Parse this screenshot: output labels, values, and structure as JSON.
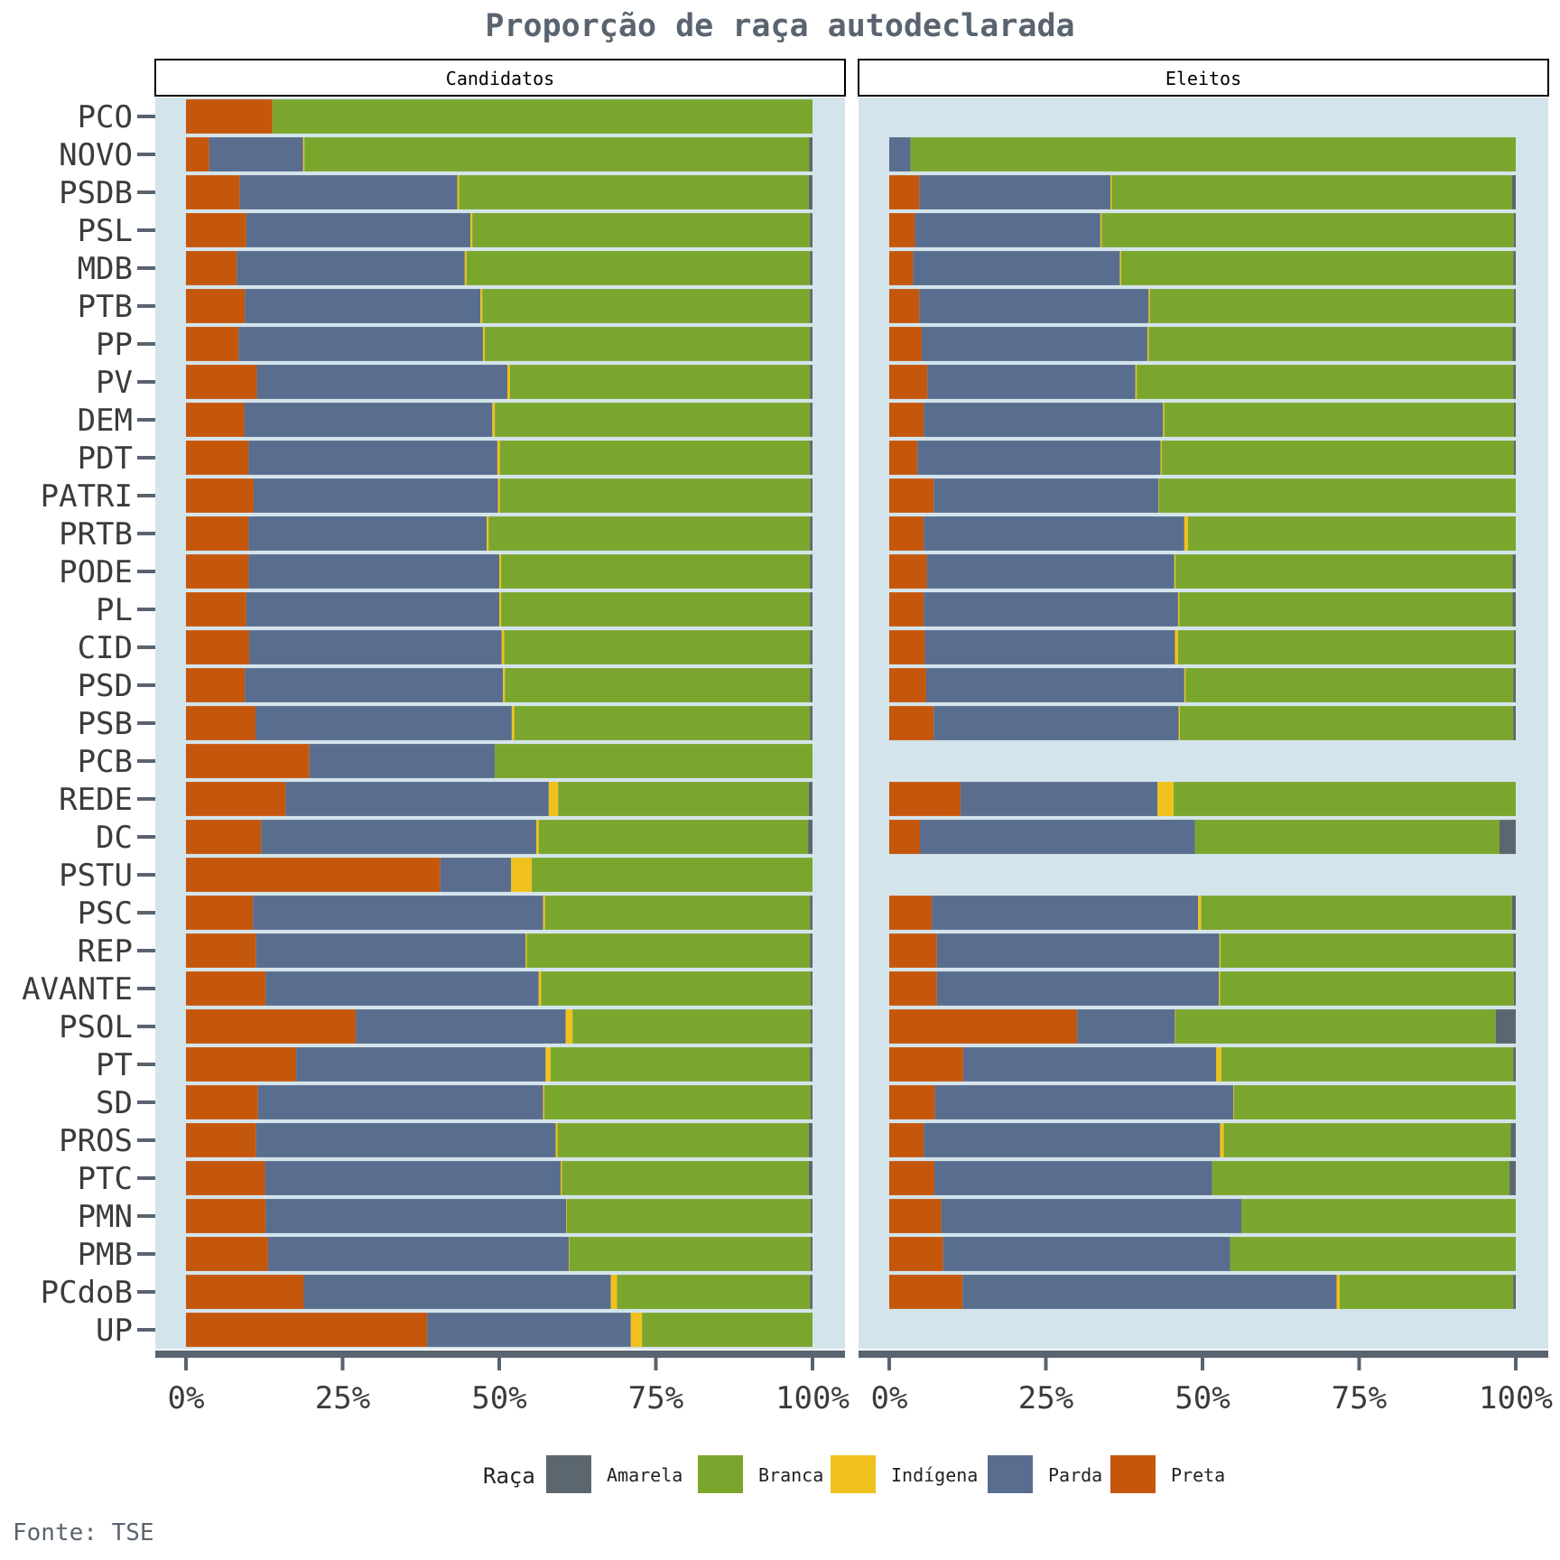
{
  "chart_data": {
    "type": "bar",
    "orientation": "horizontal",
    "stacked": "percent",
    "title": "Proporção de raça autodeclarada",
    "caption": "Fonte: TSE",
    "legend_title": "Raça",
    "legend_position": "bottom",
    "x_ticks": [
      "0%",
      "25%",
      "50%",
      "75%",
      "100%"
    ],
    "xlim": [
      0,
      100
    ],
    "categories": [
      "PCO",
      "NOVO",
      "PSDB",
      "PSL",
      "MDB",
      "PTB",
      "PP",
      "PV",
      "DEM",
      "PDT",
      "PATRI",
      "PRTB",
      "PODE",
      "PL",
      "CID",
      "PSD",
      "PSB",
      "PCB",
      "REDE",
      "DC",
      "PSTU",
      "PSC",
      "REP",
      "AVANTE",
      "PSOL",
      "PT",
      "SD",
      "PROS",
      "PTC",
      "PMN",
      "PMB",
      "PCdoB",
      "UP"
    ],
    "stack_order": [
      "Preta",
      "Parda",
      "Indígena",
      "Branca",
      "Amarela"
    ],
    "legend": [
      {
        "name": "Amarela",
        "color": "#5b666e"
      },
      {
        "name": "Branca",
        "color": "#7ba62e"
      },
      {
        "name": "Indígena",
        "color": "#f0c11c"
      },
      {
        "name": "Parda",
        "color": "#596d8e"
      },
      {
        "name": "Preta",
        "color": "#c5570c"
      }
    ],
    "panels": [
      {
        "name": "Candidatos",
        "values": {
          "PCO": [
            13.8,
            0,
            0,
            86.2,
            0
          ],
          "NOVO": [
            3.7,
            15.0,
            0.2,
            80.6,
            0.5
          ],
          "PSDB": [
            8.6,
            34.7,
            0.3,
            55.8,
            0.6
          ],
          "PSL": [
            9.6,
            35.8,
            0.3,
            53.9,
            0.4
          ],
          "MDB": [
            8.1,
            36.4,
            0.3,
            54.8,
            0.4
          ],
          "PTB": [
            9.4,
            37.6,
            0.3,
            52.3,
            0.4
          ],
          "PP": [
            8.4,
            39.0,
            0.3,
            51.9,
            0.4
          ],
          "PV": [
            11.3,
            40.0,
            0.4,
            47.9,
            0.4
          ],
          "DEM": [
            9.3,
            39.6,
            0.4,
            50.3,
            0.4
          ],
          "PDT": [
            10.0,
            39.7,
            0.4,
            49.5,
            0.4
          ],
          "PATRI": [
            10.8,
            39.0,
            0.3,
            49.6,
            0.3
          ],
          "PRTB": [
            10.0,
            38.0,
            0.3,
            51.3,
            0.4
          ],
          "PODE": [
            10.0,
            40.0,
            0.3,
            49.3,
            0.4
          ],
          "PL": [
            9.6,
            40.4,
            0.3,
            49.3,
            0.4
          ],
          "CID": [
            10.1,
            40.3,
            0.4,
            48.8,
            0.4
          ],
          "PSD": [
            9.4,
            41.2,
            0.3,
            48.7,
            0.4
          ],
          "PSB": [
            11.1,
            40.9,
            0.4,
            47.2,
            0.4
          ],
          "PCB": [
            19.7,
            29.6,
            0,
            50.7,
            0
          ],
          "REDE": [
            15.9,
            42.0,
            1.5,
            40.0,
            0.6
          ],
          "DC": [
            12.0,
            43.9,
            0.4,
            43.0,
            0.7
          ],
          "PSTU": [
            40.6,
            11.3,
            3.3,
            44.8,
            0
          ],
          "PSC": [
            10.7,
            46.3,
            0.3,
            42.3,
            0.4
          ],
          "REP": [
            11.2,
            43.0,
            0.2,
            45.2,
            0.4
          ],
          "AVANTE": [
            12.7,
            43.6,
            0.4,
            43.0,
            0.3
          ],
          "PSOL": [
            27.1,
            33.5,
            1.1,
            38.0,
            0.3
          ],
          "PT": [
            17.6,
            39.8,
            0.8,
            41.4,
            0.4
          ],
          "SD": [
            11.5,
            45.5,
            0.2,
            42.5,
            0.3
          ],
          "PROS": [
            11.2,
            47.8,
            0.3,
            40.1,
            0.6
          ],
          "PTC": [
            12.6,
            47.2,
            0.2,
            39.4,
            0.6
          ],
          "PMN": [
            12.7,
            48.0,
            0.1,
            38.9,
            0.3
          ],
          "PMB": [
            13.1,
            48.0,
            0.1,
            38.5,
            0.3
          ],
          "PCdoB": [
            18.8,
            49.0,
            1.0,
            30.8,
            0.4
          ],
          "UP": [
            38.5,
            32.5,
            1.8,
            27.2,
            0
          ]
        }
      },
      {
        "name": "Eleitos",
        "values": {
          "PCO": [
            0,
            0,
            0,
            0,
            0
          ],
          "NOVO": [
            0,
            3.4,
            0,
            96.6,
            0
          ],
          "PSDB": [
            4.8,
            30.5,
            0.2,
            63.9,
            0.6
          ],
          "PSL": [
            4.1,
            29.6,
            0.2,
            65.8,
            0.3
          ],
          "MDB": [
            3.8,
            33.0,
            0.2,
            62.6,
            0.4
          ],
          "PTB": [
            4.8,
            36.6,
            0.2,
            58.1,
            0.3
          ],
          "PP": [
            5.2,
            36.0,
            0.2,
            58.1,
            0.5
          ],
          "PV": [
            6.1,
            33.2,
            0.2,
            60.1,
            0.4
          ],
          "DEM": [
            5.5,
            38.2,
            0.2,
            55.8,
            0.3
          ],
          "PDT": [
            4.5,
            38.8,
            0.2,
            56.2,
            0.3
          ],
          "PATRI": [
            7.1,
            35.9,
            0.1,
            56.9,
            0
          ],
          "PRTB": [
            5.5,
            41.6,
            0.6,
            52.3,
            0
          ],
          "PODE": [
            6.0,
            39.5,
            0.2,
            53.8,
            0.5
          ],
          "PL": [
            5.5,
            40.6,
            0.2,
            53.2,
            0.5
          ],
          "CID": [
            5.7,
            39.9,
            0.5,
            53.6,
            0.3
          ],
          "PSD": [
            5.9,
            41.2,
            0.2,
            52.3,
            0.4
          ],
          "PSB": [
            7.1,
            39.1,
            0.2,
            53.2,
            0.4
          ],
          "PCB": [
            0,
            0,
            0,
            0,
            0
          ],
          "REDE": [
            11.4,
            31.4,
            2.6,
            54.6,
            0
          ],
          "DC": [
            4.9,
            43.9,
            0,
            48.6,
            2.6
          ],
          "PSTU": [
            0,
            0,
            0,
            0,
            0
          ],
          "PSC": [
            6.8,
            42.5,
            0.5,
            49.6,
            0.6
          ],
          "REP": [
            7.6,
            45.1,
            0.2,
            46.7,
            0.4
          ],
          "AVANTE": [
            7.6,
            45.0,
            0.2,
            46.9,
            0.3
          ],
          "PSOL": [
            30.0,
            15.6,
            0.1,
            51.1,
            3.2
          ],
          "PT": [
            11.8,
            40.4,
            0.8,
            46.6,
            0.4
          ],
          "SD": [
            7.3,
            47.6,
            0.1,
            45.0,
            0
          ],
          "PROS": [
            5.5,
            47.3,
            0.6,
            45.8,
            0.8
          ],
          "PTC": [
            7.2,
            44.3,
            0,
            47.5,
            1.0
          ],
          "PMN": [
            8.3,
            47.9,
            0,
            43.8,
            0
          ],
          "PMB": [
            8.6,
            45.8,
            0,
            45.6,
            0
          ],
          "PCdoB": [
            11.7,
            59.7,
            0.5,
            27.7,
            0.4
          ],
          "UP": [
            0,
            0,
            0,
            0,
            0
          ]
        }
      }
    ]
  }
}
